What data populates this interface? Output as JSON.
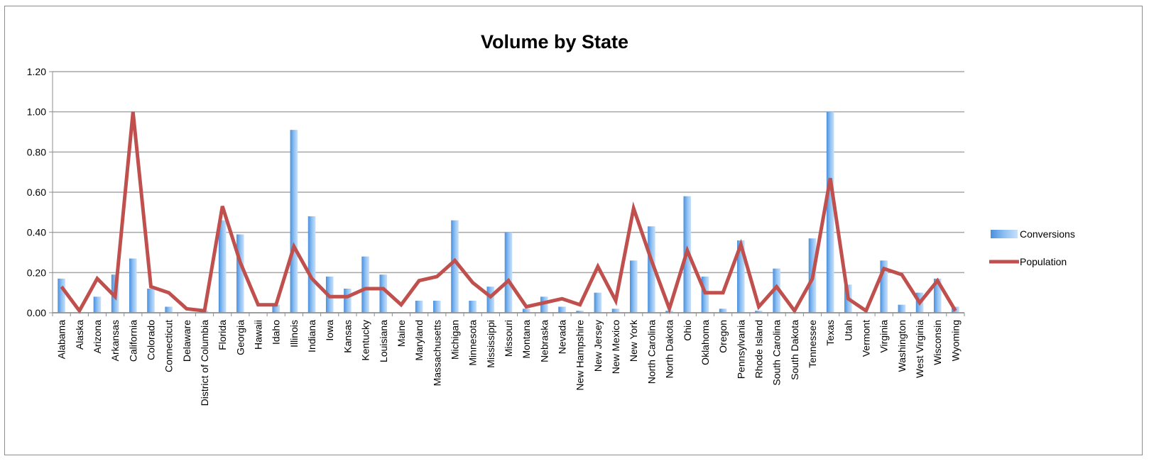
{
  "chart_data": {
    "type": "bar",
    "title": "Volume by State",
    "xlabel": "",
    "ylabel": "",
    "ylim": [
      0,
      1.2
    ],
    "yticks": [
      "0.00",
      "0.20",
      "0.40",
      "0.60",
      "0.80",
      "1.00",
      "1.20"
    ],
    "grid": true,
    "legend_position": "right",
    "categories": [
      "Alabama",
      "Alaska",
      "Arizona",
      "Arkansas",
      "California",
      "Colorado",
      "Connecticut",
      "Delaware",
      "District of Columbia",
      "Florida",
      "Georgia",
      "Hawaii",
      "Idaho",
      "Illinois",
      "Indiana",
      "Iowa",
      "Kansas",
      "Kentucky",
      "Louisiana",
      "Maine",
      "Maryland",
      "Massachusetts",
      "Michigan",
      "Minnesota",
      "Mississippi",
      "Missouri",
      "Montana",
      "Nebraska",
      "Nevada",
      "New Hampshire",
      "New Jersey",
      "New Mexico",
      "New York",
      "North Carolina",
      "North Dakota",
      "Ohio",
      "Oklahoma",
      "Oregon",
      "Pennsylvania",
      "Rhode Island",
      "South Carolina",
      "South Dakota",
      "Tennessee",
      "Texas",
      "Utah",
      "Vermont",
      "Virginia",
      "Washington",
      "West Virginia",
      "Wisconsin",
      "Wyoming"
    ],
    "series": [
      {
        "name": "Conversions",
        "type": "bar",
        "color": "#6fa8e8",
        "values": [
          0.17,
          0.0,
          0.08,
          0.19,
          0.27,
          0.12,
          0.03,
          0.0,
          0.01,
          0.46,
          0.39,
          0.0,
          0.04,
          0.91,
          0.48,
          0.18,
          0.12,
          0.28,
          0.19,
          0.0,
          0.06,
          0.06,
          0.46,
          0.06,
          0.13,
          0.4,
          0.02,
          0.08,
          0.03,
          0.01,
          0.1,
          0.02,
          0.26,
          0.43,
          0.01,
          0.58,
          0.18,
          0.02,
          0.36,
          0.01,
          0.22,
          0.0,
          0.37,
          1.0,
          0.14,
          0.0,
          0.26,
          0.04,
          0.1,
          0.17,
          0.03
        ]
      },
      {
        "name": "Population",
        "type": "line",
        "color": "#c0504d",
        "values": [
          0.13,
          0.01,
          0.17,
          0.08,
          1.0,
          0.13,
          0.1,
          0.02,
          0.01,
          0.53,
          0.25,
          0.04,
          0.04,
          0.33,
          0.17,
          0.08,
          0.08,
          0.12,
          0.12,
          0.04,
          0.16,
          0.18,
          0.26,
          0.15,
          0.08,
          0.16,
          0.03,
          0.05,
          0.07,
          0.04,
          0.23,
          0.06,
          0.52,
          0.26,
          0.02,
          0.31,
          0.1,
          0.1,
          0.34,
          0.03,
          0.13,
          0.01,
          0.17,
          0.67,
          0.07,
          0.01,
          0.22,
          0.19,
          0.05,
          0.16,
          0.01
        ]
      }
    ]
  }
}
